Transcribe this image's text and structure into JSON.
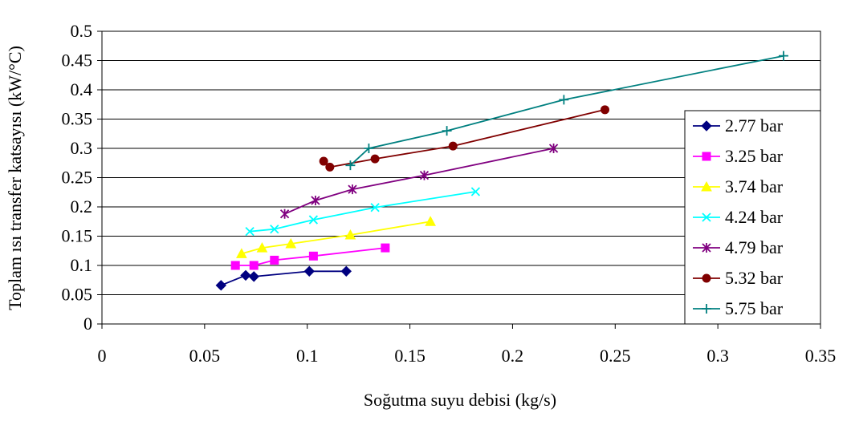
{
  "chart_data": {
    "type": "line",
    "title": "",
    "xlabel": "Soğutma suyu debisi (kg/s)",
    "ylabel": "Toplam ısı transfer katsayısı (kW/°C)",
    "xlim": [
      0,
      0.35
    ],
    "ylim": [
      0,
      0.5
    ],
    "x_ticks": [
      "0",
      "0.05",
      "0.1",
      "0.15",
      "0.2",
      "0.25",
      "0.3",
      "0.35"
    ],
    "y_ticks": [
      "0",
      "0.05",
      "0.1",
      "0.15",
      "0.2",
      "0.25",
      "0.3",
      "0.35",
      "0.4",
      "0.45",
      "0.5"
    ],
    "grid": "horizontal",
    "legend_position": "right",
    "series": [
      {
        "name": "2.77 bar",
        "color": "#000080",
        "marker": "diamond",
        "points": [
          [
            0.058,
            0.066
          ],
          [
            0.07,
            0.083
          ],
          [
            0.074,
            0.081
          ],
          [
            0.101,
            0.09
          ],
          [
            0.119,
            0.09
          ]
        ]
      },
      {
        "name": "3.25 bar",
        "color": "#ff00ff",
        "marker": "square",
        "points": [
          [
            0.065,
            0.1
          ],
          [
            0.074,
            0.1
          ],
          [
            0.084,
            0.109
          ],
          [
            0.103,
            0.116
          ],
          [
            0.138,
            0.13
          ]
        ]
      },
      {
        "name": "3.74 bar",
        "color": "#ffff00",
        "marker": "triangle",
        "points": [
          [
            0.068,
            0.12
          ],
          [
            0.078,
            0.13
          ],
          [
            0.092,
            0.137
          ],
          [
            0.121,
            0.152
          ],
          [
            0.16,
            0.175
          ]
        ]
      },
      {
        "name": "4.24 bar",
        "color": "#00ffff",
        "marker": "x",
        "points": [
          [
            0.072,
            0.158
          ],
          [
            0.084,
            0.162
          ],
          [
            0.103,
            0.178
          ],
          [
            0.133,
            0.199
          ],
          [
            0.182,
            0.226
          ]
        ]
      },
      {
        "name": "4.79 bar",
        "color": "#800080",
        "marker": "asterisk",
        "points": [
          [
            0.089,
            0.188
          ],
          [
            0.104,
            0.211
          ],
          [
            0.122,
            0.23
          ],
          [
            0.157,
            0.254
          ],
          [
            0.22,
            0.3
          ]
        ]
      },
      {
        "name": "5.32 bar",
        "color": "#800000",
        "marker": "circle",
        "points": [
          [
            0.108,
            0.278
          ],
          [
            0.111,
            0.268
          ],
          [
            0.133,
            0.282
          ],
          [
            0.171,
            0.304
          ],
          [
            0.245,
            0.366
          ]
        ]
      },
      {
        "name": "5.75 bar",
        "color": "#008080",
        "marker": "plus",
        "points": [
          [
            0.121,
            0.271
          ],
          [
            0.13,
            0.3
          ],
          [
            0.168,
            0.33
          ],
          [
            0.225,
            0.383
          ],
          [
            0.332,
            0.458
          ]
        ]
      }
    ]
  }
}
